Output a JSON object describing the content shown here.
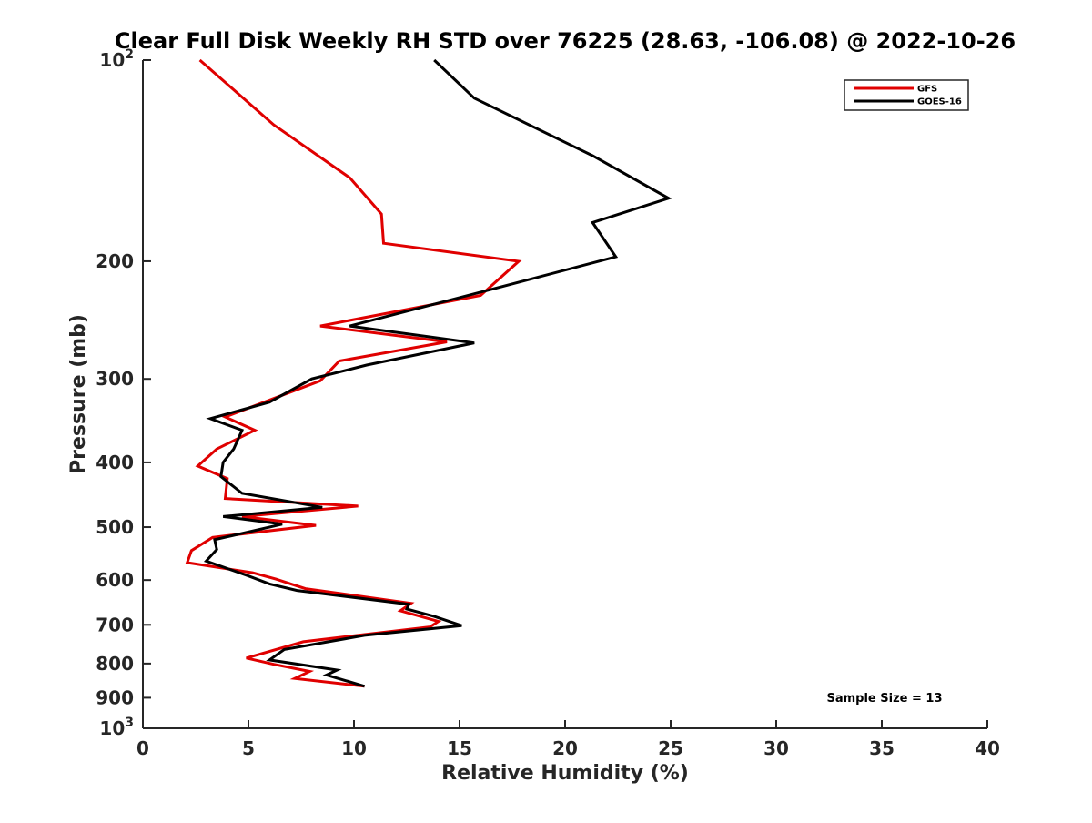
{
  "chart_data": {
    "type": "line",
    "title": "Clear Full Disk Weekly RH STD over 76225 (28.63, -106.08) @ 2022-10-26",
    "xlabel": "Relative Humidity (%)",
    "ylabel": "Pressure (mb)",
    "xlim": [
      0,
      40
    ],
    "ylim": [
      100,
      1000
    ],
    "y_scale": "log",
    "y_reversed": true,
    "x_ticks": [
      "0",
      "5",
      "10",
      "15",
      "20",
      "25",
      "30",
      "35",
      "40"
    ],
    "y_ticks": [
      {
        "value": 100,
        "label": "10",
        "sup": "2"
      },
      {
        "value": 200,
        "label": "200",
        "sup": ""
      },
      {
        "value": 300,
        "label": "300",
        "sup": ""
      },
      {
        "value": 400,
        "label": "400",
        "sup": ""
      },
      {
        "value": 500,
        "label": "500",
        "sup": ""
      },
      {
        "value": 600,
        "label": "600",
        "sup": ""
      },
      {
        "value": 700,
        "label": "700",
        "sup": ""
      },
      {
        "value": 800,
        "label": "800",
        "sup": ""
      },
      {
        "value": 900,
        "label": "900",
        "sup": ""
      },
      {
        "value": 1000,
        "label": "10",
        "sup": "3"
      }
    ],
    "grid": false,
    "legend_position": "top-right",
    "annotation": "Sample Size = 13",
    "series": [
      {
        "name": "GFS",
        "color": "#e00000",
        "points": [
          [
            2.7,
            100
          ],
          [
            6.2,
            125
          ],
          [
            9.8,
            150
          ],
          [
            11.3,
            170
          ],
          [
            11.4,
            188
          ],
          [
            17.8,
            200
          ],
          [
            16.0,
            225
          ],
          [
            8.4,
            250
          ],
          [
            14.4,
            264
          ],
          [
            9.3,
            282
          ],
          [
            8.4,
            302
          ],
          [
            3.9,
            342
          ],
          [
            5.3,
            358
          ],
          [
            3.5,
            382
          ],
          [
            2.6,
            405
          ],
          [
            4.0,
            423
          ],
          [
            3.9,
            453
          ],
          [
            10.2,
            465
          ],
          [
            4.7,
            482
          ],
          [
            8.2,
            497
          ],
          [
            3.3,
            518
          ],
          [
            2.3,
            542
          ],
          [
            2.1,
            565
          ],
          [
            5.2,
            585
          ],
          [
            6.3,
            598
          ],
          [
            7.7,
            618
          ],
          [
            12.7,
            650
          ],
          [
            12.2,
            667
          ],
          [
            14.0,
            692
          ],
          [
            13.6,
            705
          ],
          [
            7.6,
            742
          ],
          [
            4.9,
            785
          ],
          [
            6.2,
            802
          ],
          [
            7.9,
            822
          ],
          [
            7.2,
            842
          ],
          [
            10.5,
            865
          ]
        ]
      },
      {
        "name": "GOES-16",
        "color": "#000000",
        "points": [
          [
            13.8,
            100
          ],
          [
            15.7,
            114
          ],
          [
            21.3,
            139
          ],
          [
            24.9,
            161
          ],
          [
            21.3,
            175
          ],
          [
            22.4,
            197
          ],
          [
            16.6,
            220
          ],
          [
            9.8,
            250
          ],
          [
            15.7,
            265
          ],
          [
            10.6,
            286
          ],
          [
            8.0,
            300
          ],
          [
            6.0,
            325
          ],
          [
            3.2,
            344
          ],
          [
            4.7,
            358
          ],
          [
            4.3,
            382
          ],
          [
            3.8,
            400
          ],
          [
            3.7,
            420
          ],
          [
            4.7,
            445
          ],
          [
            8.5,
            467
          ],
          [
            3.8,
            482
          ],
          [
            6.6,
            495
          ],
          [
            3.4,
            522
          ],
          [
            3.5,
            540
          ],
          [
            3.0,
            562
          ],
          [
            4.9,
            590
          ],
          [
            6.0,
            608
          ],
          [
            7.3,
            622
          ],
          [
            12.6,
            652
          ],
          [
            12.5,
            663
          ],
          [
            13.8,
            680
          ],
          [
            15.1,
            702
          ],
          [
            10.5,
            726
          ],
          [
            6.7,
            762
          ],
          [
            6.0,
            790
          ],
          [
            9.2,
            818
          ],
          [
            8.7,
            832
          ],
          [
            10.5,
            865
          ]
        ]
      }
    ]
  }
}
